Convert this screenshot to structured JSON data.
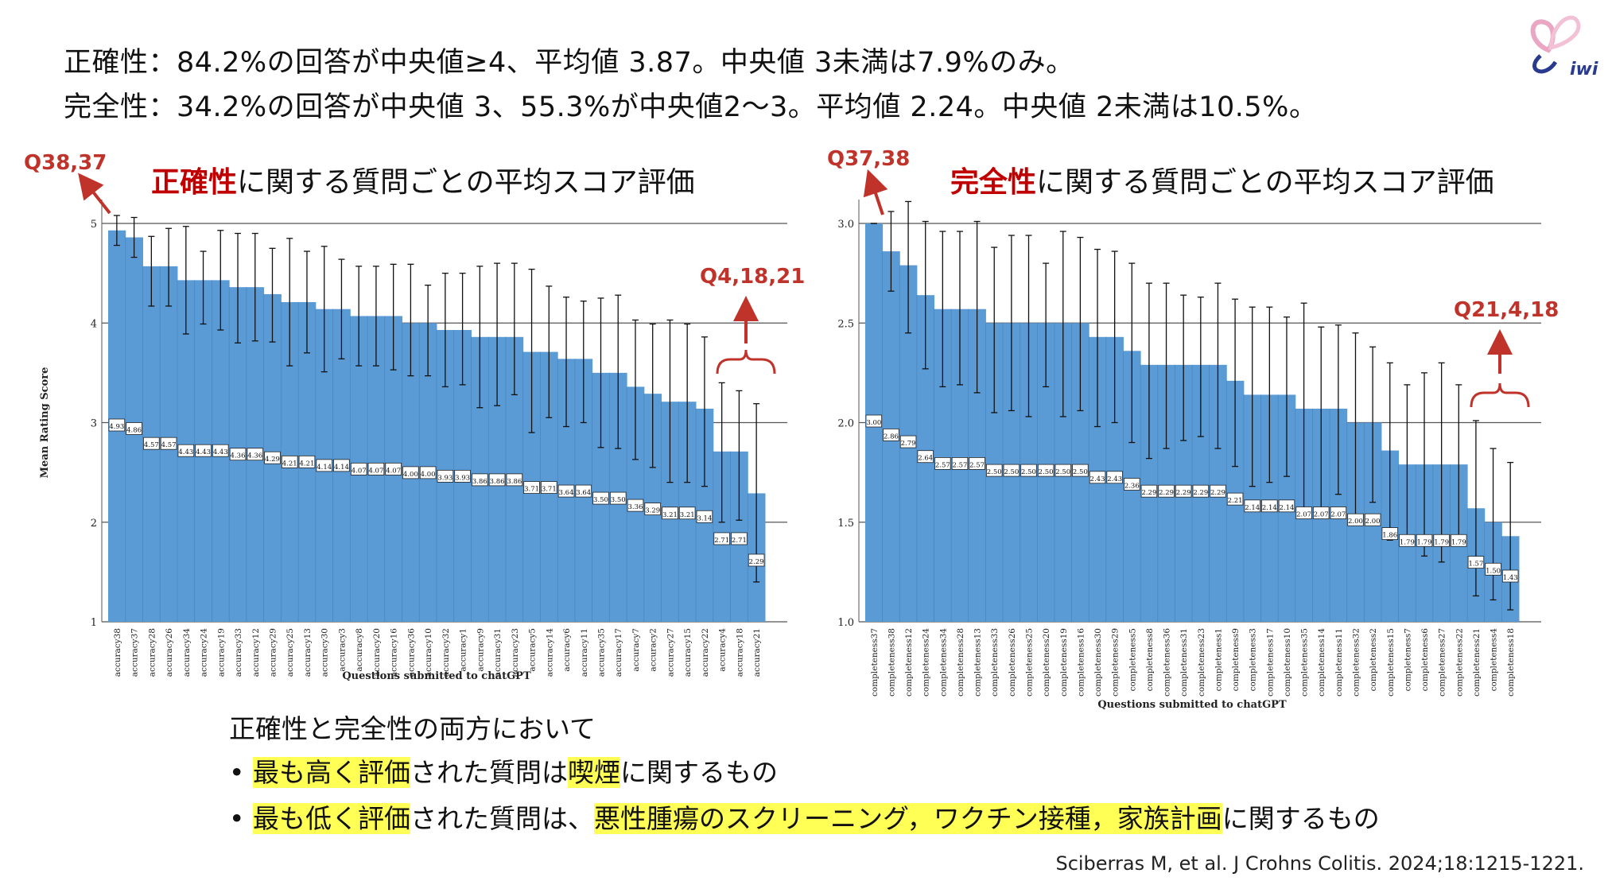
{
  "header": {
    "line1": "正確性：84.2%の回答が中央値≥4、平均値 3.87。中央値 3未満は7.9%のみ。",
    "line2": "完全性：34.2%の回答が中央値 3、55.3%が中央値2～3。平均値 2.24。中央値 2未満は10.5%。"
  },
  "logo_text": "iwi",
  "chart_titles": {
    "accuracy": {
      "highlight": "正確性",
      "rest": "に関する質問ごとの平均スコア評価"
    },
    "completeness": {
      "highlight": "完全性",
      "rest": "に関する質問ごとの平均スコア評価"
    }
  },
  "annotations": {
    "acc_top": "Q38,37",
    "acc_low": "Q4,18,21",
    "comp_top": "Q37,38",
    "comp_low": "Q21,4,18"
  },
  "bottom": {
    "intro": "正確性と完全性の両方において",
    "b1_hl1": "最も高く評価",
    "b1_t1": "された質問は",
    "b1_hl2": "喫煙",
    "b1_t2": "に関するもの",
    "b2_hl1": "最も低く評価",
    "b2_t1": "された質問は、",
    "b2_hl2": "悪性腫瘍のスクリーニング，ワクチン接種，家族計画",
    "b2_t2": "に関するもの"
  },
  "citation": "Sciberras M, et al. J Crohns Colitis. 2024;18:1215-1221.",
  "colors": {
    "bar": "#5b9bd5",
    "accent": "#c0332b",
    "highlight": "#ffff55"
  },
  "chart_data": [
    {
      "type": "bar",
      "ylabel": "Mean Rating Score",
      "xlabel": "Questions submitted to chatGPT",
      "ylim": [
        1,
        5
      ],
      "yticks": [
        "1",
        "2",
        "3",
        "4",
        "5"
      ],
      "categories": [
        "accuracy38",
        "accuracy37",
        "accuracy28",
        "accuracy26",
        "accuracy34",
        "accuracy24",
        "accuracy19",
        "accuracy33",
        "accuracy12",
        "accuracy29",
        "accuracy25",
        "accuracy13",
        "accuracy30",
        "accuracy3",
        "accuracy8",
        "accuracy20",
        "accuracy16",
        "accuracy36",
        "accuracy10",
        "accuracy32",
        "accuracy1",
        "accuracy9",
        "accuracy31",
        "accuracy23",
        "accuracy5",
        "accuracy14",
        "accuracy6",
        "accuracy11",
        "accuracy35",
        "accuracy17",
        "accuracy7",
        "accuracy2",
        "accuracy27",
        "accuracy15",
        "accuracy22",
        "accuracy4",
        "accuracy18",
        "accuracy21"
      ],
      "values": [
        4.93,
        4.86,
        4.57,
        4.57,
        4.43,
        4.43,
        4.43,
        4.36,
        4.36,
        4.29,
        4.21,
        4.21,
        4.14,
        4.14,
        4.07,
        4.07,
        4.07,
        4.0,
        4.0,
        3.93,
        3.93,
        3.86,
        3.86,
        3.86,
        3.71,
        3.71,
        3.64,
        3.64,
        3.5,
        3.5,
        3.36,
        3.29,
        3.21,
        3.21,
        3.14,
        2.71,
        2.71,
        2.29
      ],
      "labels": [
        "4.93",
        "4.86",
        "4.57",
        "4.57",
        "4.43",
        "4.43",
        "4.43",
        "4.36",
        "4.36",
        "4.29",
        "4.21",
        "4.21",
        "4.14",
        "4.14",
        "4.07",
        "4.07",
        "4.07",
        "4.00",
        "4.00",
        "3.93",
        "3.93",
        "3.86",
        "3.86",
        "3.86",
        "3.71",
        "3.71",
        "3.64",
        "3.64",
        "3.50",
        "3.50",
        "3.36",
        "3.29",
        "3.21",
        "3.21",
        "3.14",
        "2.71",
        "2.71",
        "2.29"
      ],
      "err_low": [
        4.78,
        4.66,
        4.17,
        4.17,
        3.89,
        3.99,
        3.93,
        3.8,
        3.82,
        3.81,
        3.57,
        3.7,
        3.51,
        3.64,
        3.57,
        3.57,
        3.53,
        3.47,
        3.47,
        3.36,
        3.38,
        3.15,
        3.17,
        3.28,
        2.9,
        3.05,
        2.96,
        3.0,
        2.75,
        2.74,
        2.63,
        2.55,
        2.4,
        2.4,
        2.36,
        2.0,
        2.02,
        1.4
      ],
      "err_high": [
        5.08,
        5.06,
        4.87,
        4.95,
        4.97,
        4.72,
        4.93,
        4.9,
        4.9,
        4.75,
        4.85,
        4.72,
        4.77,
        4.64,
        4.57,
        4.57,
        4.59,
        4.59,
        4.38,
        4.5,
        4.5,
        4.57,
        4.6,
        4.6,
        4.54,
        4.37,
        4.26,
        4.22,
        4.25,
        4.28,
        4.03,
        3.99,
        4.03,
        3.99,
        3.86,
        3.4,
        3.32,
        3.19
      ]
    },
    {
      "type": "bar",
      "ylabel": "",
      "xlabel": "Questions submitted to chatGPT",
      "ylim": [
        1.0,
        3.0
      ],
      "yticks": [
        "1.0",
        "1.5",
        "2.0",
        "2.5",
        "3.0"
      ],
      "categories": [
        "completeness37",
        "completeness38",
        "completeness12",
        "completeness24",
        "completeness34",
        "completeness28",
        "completeness13",
        "completeness33",
        "completeness26",
        "completeness25",
        "completeness20",
        "completeness19",
        "completeness16",
        "completeness30",
        "completeness29",
        "completeness5",
        "completeness8",
        "completeness36",
        "completeness31",
        "completeness23",
        "completeness1",
        "completeness9",
        "completeness3",
        "completeness17",
        "completeness10",
        "completeness35",
        "completeness14",
        "completeness11",
        "completeness32",
        "completeness2",
        "completeness15",
        "completeness7",
        "completeness6",
        "completeness27",
        "completeness22",
        "completeness21",
        "completeness4",
        "completeness18"
      ],
      "values": [
        3.0,
        2.86,
        2.79,
        2.64,
        2.57,
        2.57,
        2.57,
        2.5,
        2.5,
        2.5,
        2.5,
        2.5,
        2.5,
        2.43,
        2.43,
        2.36,
        2.29,
        2.29,
        2.29,
        2.29,
        2.29,
        2.21,
        2.14,
        2.14,
        2.14,
        2.07,
        2.07,
        2.07,
        2.0,
        2.0,
        1.86,
        1.79,
        1.79,
        1.79,
        1.79,
        1.57,
        1.5,
        1.43
      ],
      "labels": [
        "3.00",
        "2.86",
        "2.79",
        "2.64",
        "2.57",
        "2.57",
        "2.57",
        "2.50",
        "2.50",
        "2.50",
        "2.50",
        "2.50",
        "2.50",
        "2.43",
        "2.43",
        "2.36",
        "2.29",
        "2.29",
        "2.29",
        "2.29",
        "2.29",
        "2.21",
        "2.14",
        "2.14",
        "2.14",
        "2.07",
        "2.07",
        "2.07",
        "2.00",
        "2.00",
        "1.86",
        "1.79",
        "1.79",
        "1.79",
        "1.79",
        "1.57",
        "1.50",
        "1.43"
      ],
      "err_low": [
        3.0,
        2.66,
        2.45,
        2.27,
        2.18,
        2.19,
        2.15,
        2.05,
        2.06,
        2.03,
        2.18,
        2.03,
        2.06,
        1.98,
        2.0,
        1.9,
        1.82,
        1.87,
        1.91,
        1.93,
        1.87,
        1.78,
        1.68,
        1.7,
        1.73,
        1.54,
        1.56,
        1.64,
        1.52,
        1.6,
        1.41,
        1.39,
        1.33,
        1.3,
        1.39,
        1.13,
        1.11,
        1.06
      ],
      "err_high": [
        3.0,
        3.06,
        3.11,
        3.01,
        2.96,
        2.96,
        3.01,
        2.88,
        2.94,
        2.94,
        2.8,
        2.96,
        2.93,
        2.87,
        2.86,
        2.8,
        2.7,
        2.7,
        2.64,
        2.63,
        2.7,
        2.62,
        2.58,
        2.58,
        2.53,
        2.6,
        2.48,
        2.49,
        2.45,
        2.38,
        2.3,
        2.19,
        2.25,
        2.3,
        2.19,
        2.01,
        1.87,
        1.8
      ]
    }
  ]
}
